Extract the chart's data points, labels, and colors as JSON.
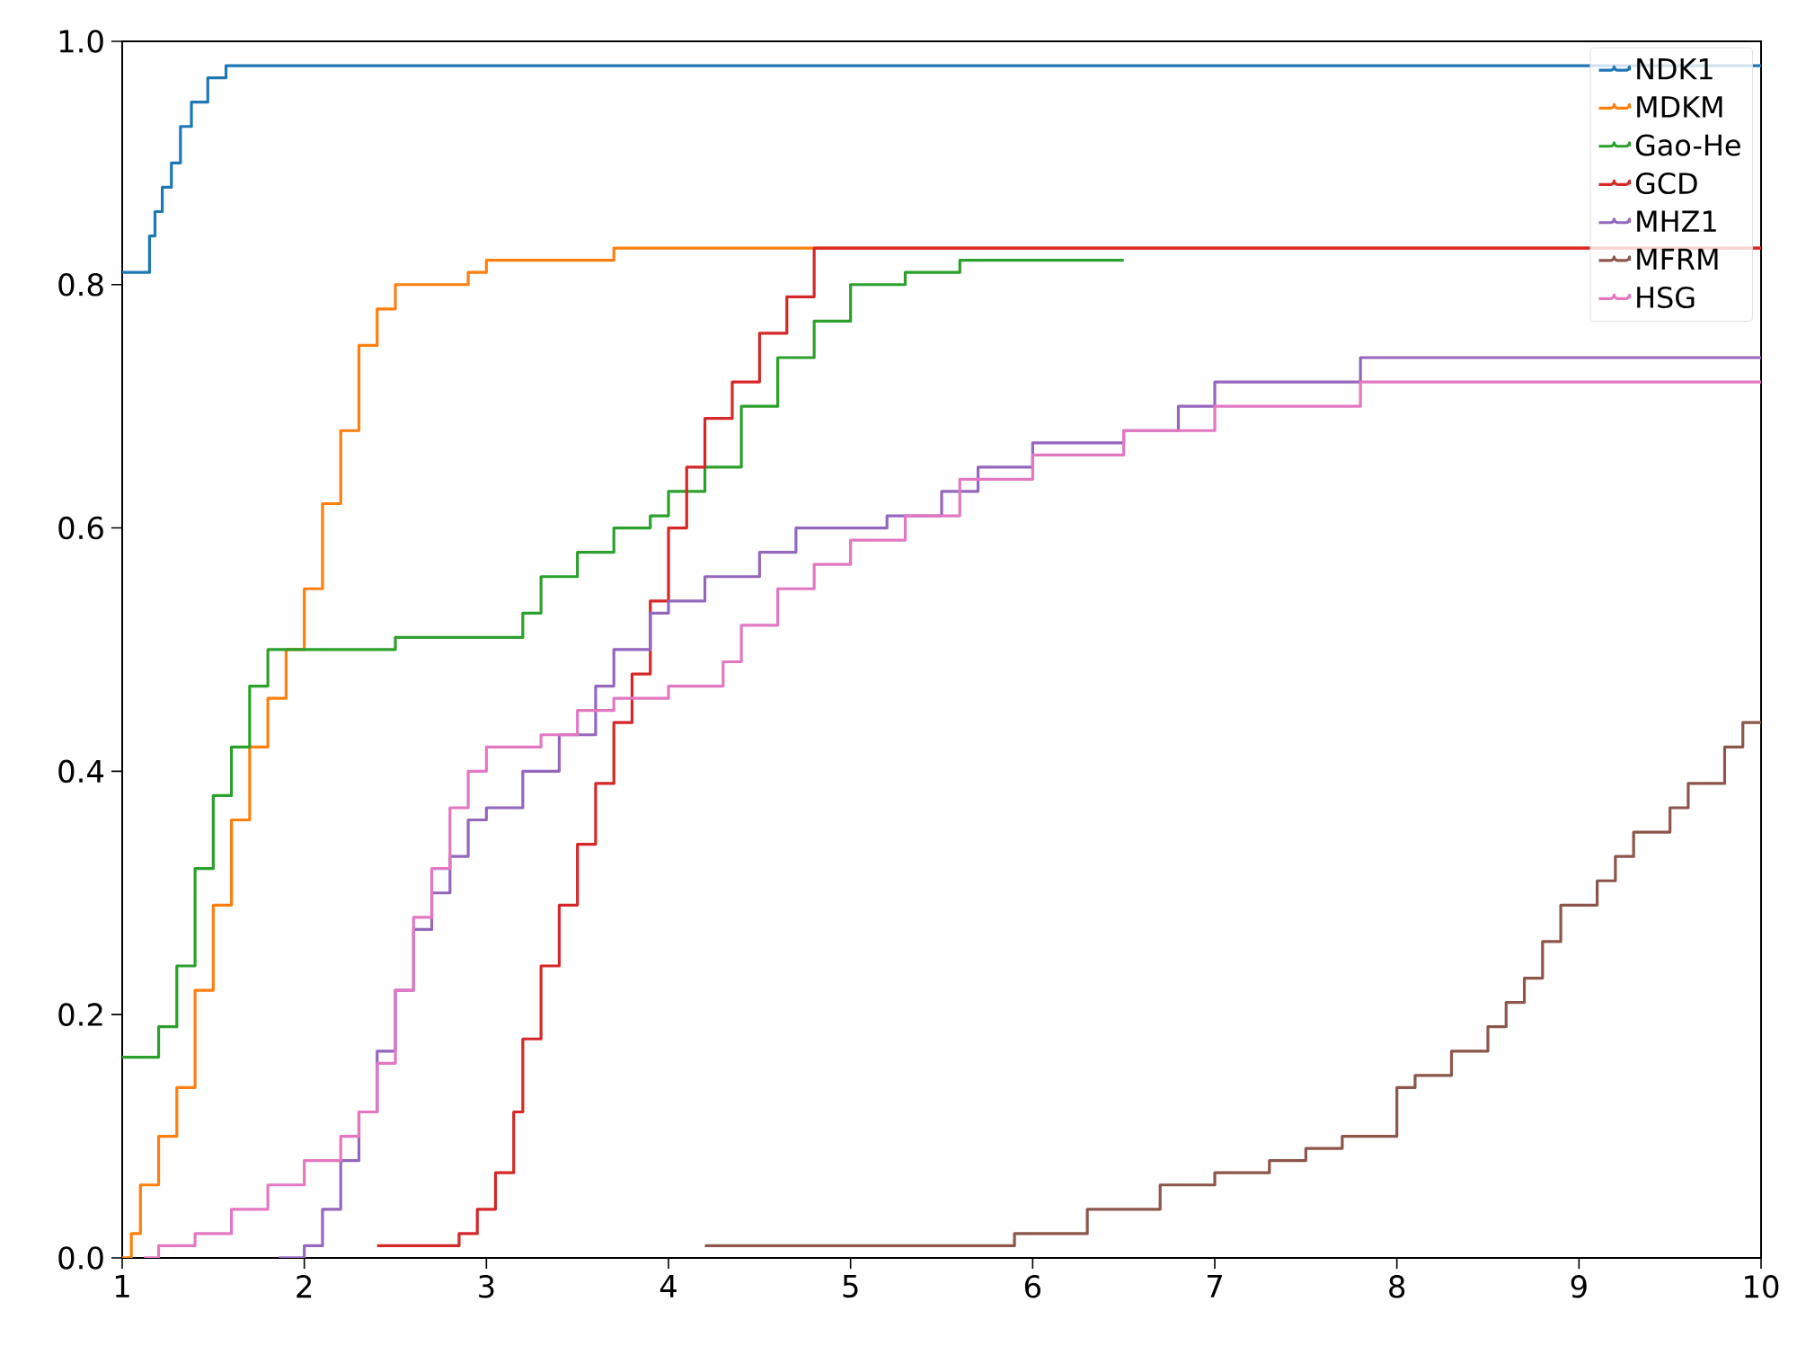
{
  "chart_data": {
    "type": "step",
    "xlim": [
      1,
      10
    ],
    "ylim": [
      0,
      1
    ],
    "xticks": [
      1,
      2,
      3,
      4,
      5,
      6,
      7,
      8,
      9,
      10
    ],
    "yticks": [
      {
        "value": 0,
        "label": "0.0"
      },
      {
        "value": 0.2,
        "label": "0.2"
      },
      {
        "value": 0.4,
        "label": "0.4"
      },
      {
        "value": 0.6,
        "label": "0.6"
      },
      {
        "value": 0.8,
        "label": "0.8"
      },
      {
        "value": 1,
        "label": "1.0"
      }
    ],
    "legend": "top right",
    "grid": false,
    "series": [
      {
        "name": "NDK1",
        "color": "#1f77b4",
        "x": [
          1,
          1.15,
          1.18,
          1.22,
          1.27,
          1.32,
          1.38,
          1.47,
          1.57,
          10
        ],
        "values": [
          0.81,
          0.84,
          0.86,
          0.88,
          0.9,
          0.93,
          0.95,
          0.97,
          0.98,
          0.98
        ]
      },
      {
        "name": "MDKM",
        "color": "#ff7f0e",
        "x": [
          1,
          1.05,
          1.1,
          1.2,
          1.3,
          1.4,
          1.5,
          1.6,
          1.7,
          1.8,
          1.9,
          2.0,
          2.1,
          2.2,
          2.3,
          2.4,
          2.5,
          2.9,
          3.0,
          3.7,
          10
        ],
        "values": [
          0,
          0.02,
          0.06,
          0.1,
          0.14,
          0.22,
          0.29,
          0.36,
          0.42,
          0.46,
          0.5,
          0.55,
          0.62,
          0.68,
          0.75,
          0.78,
          0.8,
          0.81,
          0.82,
          0.83,
          0.83
        ]
      },
      {
        "name": "Gao-He",
        "color": "#2ca02c",
        "x": [
          1,
          1.2,
          1.3,
          1.4,
          1.5,
          1.6,
          1.7,
          1.8,
          2.5,
          3.2,
          3.3,
          3.5,
          3.7,
          3.9,
          4.0,
          4.2,
          4.4,
          4.6,
          4.8,
          5.0,
          5.3,
          5.6,
          6.5
        ],
        "values": [
          0.165,
          0.19,
          0.24,
          0.32,
          0.38,
          0.42,
          0.47,
          0.5,
          0.51,
          0.53,
          0.56,
          0.58,
          0.6,
          0.61,
          0.63,
          0.65,
          0.7,
          0.74,
          0.77,
          0.8,
          0.81,
          0.82,
          0.82
        ]
      },
      {
        "name": "GCD",
        "color": "#d62728",
        "x": [
          2.4,
          2.85,
          2.95,
          3.05,
          3.15,
          3.2,
          3.3,
          3.4,
          3.5,
          3.6,
          3.7,
          3.8,
          3.9,
          4.0,
          4.1,
          4.2,
          4.35,
          4.5,
          4.65,
          4.8,
          10
        ],
        "values": [
          0.01,
          0.02,
          0.04,
          0.07,
          0.12,
          0.18,
          0.24,
          0.29,
          0.34,
          0.39,
          0.44,
          0.48,
          0.54,
          0.6,
          0.65,
          0.69,
          0.72,
          0.76,
          0.79,
          0.83,
          0.83
        ]
      },
      {
        "name": "MHZ1",
        "color": "#9467bd",
        "x": [
          1.86,
          2.0,
          2.1,
          2.2,
          2.3,
          2.4,
          2.5,
          2.6,
          2.7,
          2.8,
          2.9,
          3.0,
          3.2,
          3.4,
          3.6,
          3.7,
          3.9,
          4.0,
          4.2,
          4.5,
          4.7,
          5.2,
          5.5,
          5.7,
          6.0,
          6.5,
          6.8,
          7.0,
          7.8,
          10
        ],
        "values": [
          0,
          0.01,
          0.04,
          0.08,
          0.12,
          0.17,
          0.22,
          0.27,
          0.3,
          0.33,
          0.36,
          0.37,
          0.4,
          0.43,
          0.47,
          0.5,
          0.53,
          0.54,
          0.56,
          0.58,
          0.6,
          0.61,
          0.63,
          0.65,
          0.67,
          0.68,
          0.7,
          0.72,
          0.74,
          0.74
        ]
      },
      {
        "name": "MFRM",
        "color": "#8c564b",
        "x": [
          4.2,
          5.9,
          6.3,
          6.7,
          7.0,
          7.3,
          7.5,
          7.7,
          8.0,
          8.1,
          8.3,
          8.5,
          8.6,
          8.7,
          8.8,
          8.9,
          9.1,
          9.2,
          9.3,
          9.5,
          9.6,
          9.8,
          9.9,
          10
        ],
        "values": [
          0.01,
          0.02,
          0.04,
          0.06,
          0.07,
          0.08,
          0.09,
          0.1,
          0.14,
          0.15,
          0.17,
          0.19,
          0.21,
          0.23,
          0.26,
          0.29,
          0.31,
          0.33,
          0.35,
          0.37,
          0.39,
          0.42,
          0.44,
          0.44
        ]
      },
      {
        "name": "HSG",
        "color": "#e377c2",
        "x": [
          1.12,
          1.2,
          1.4,
          1.6,
          1.8,
          2.0,
          2.2,
          2.3,
          2.4,
          2.5,
          2.6,
          2.7,
          2.8,
          2.9,
          3.0,
          3.3,
          3.5,
          3.7,
          4.0,
          4.3,
          4.4,
          4.6,
          4.8,
          5.0,
          5.3,
          5.6,
          6.0,
          6.5,
          7.0,
          7.8,
          10
        ],
        "values": [
          0,
          0.01,
          0.02,
          0.04,
          0.06,
          0.08,
          0.1,
          0.12,
          0.16,
          0.22,
          0.28,
          0.32,
          0.37,
          0.4,
          0.42,
          0.43,
          0.45,
          0.46,
          0.47,
          0.49,
          0.52,
          0.55,
          0.57,
          0.59,
          0.61,
          0.64,
          0.66,
          0.68,
          0.7,
          0.72,
          0.72
        ]
      }
    ]
  }
}
